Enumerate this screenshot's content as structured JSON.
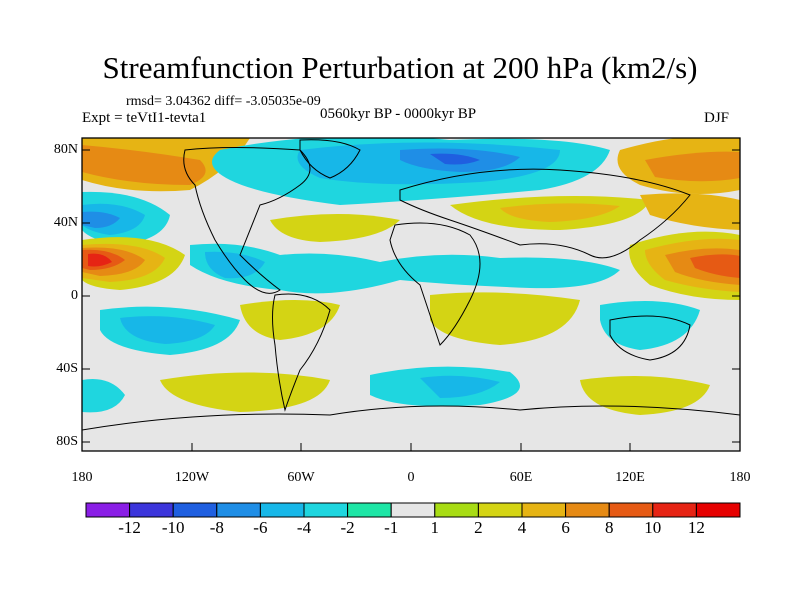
{
  "title": "Streamfunction Perturbation at 200 hPa (km2/s)",
  "stats_line": "rmsd= 3.04362 diff= -3.05035e-09",
  "experiment": "Expt = teVtI1-tevta1",
  "period": "0560kyr BP - 0000kyr BP",
  "season": "DJF",
  "lat_ticks": [
    "80N",
    "40N",
    "0",
    "40S",
    "80S"
  ],
  "lon_ticks": [
    "180",
    "120W",
    "60W",
    "0",
    "60E",
    "120E",
    "180"
  ],
  "colorbar": {
    "labels": [
      "-12",
      "-10",
      "-8",
      "-6",
      "-4",
      "-2",
      "-1",
      "1",
      "2",
      "4",
      "6",
      "8",
      "10",
      "12"
    ],
    "colors": [
      "#8a1ee6",
      "#3c35db",
      "#1f5fe0",
      "#1f8ee6",
      "#17b7e8",
      "#1fd6df",
      "#1ee6a6",
      "#e6e6e6",
      "#a8dc14",
      "#d4d414",
      "#e6b414",
      "#e68a14",
      "#e65a14",
      "#e62414",
      "#e60000"
    ]
  }
}
